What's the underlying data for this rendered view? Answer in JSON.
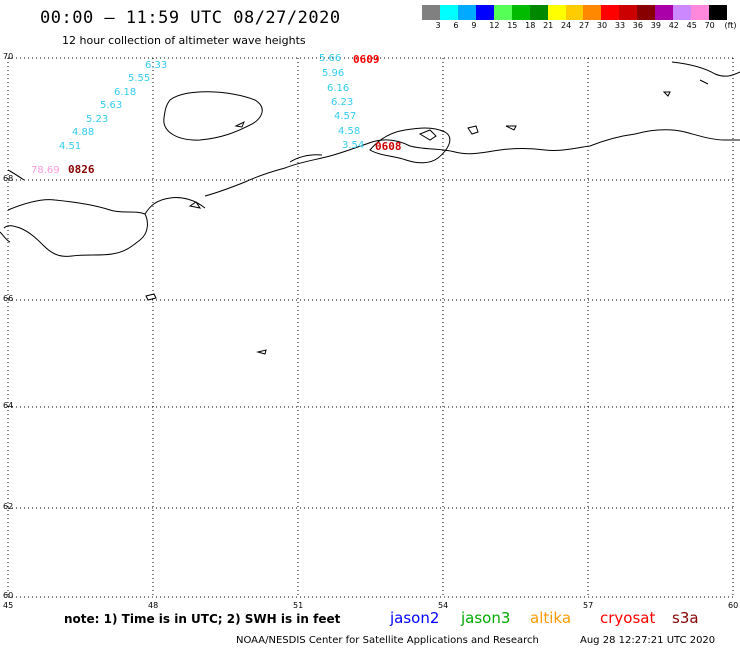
{
  "header": {
    "title": "00:00 – 11:59 UTC 08/27/2020",
    "subtitle": "12 hour collection of altimeter wave heights"
  },
  "legend": {
    "colors": [
      "#808080",
      "#00ffff",
      "#00aaff",
      "#0000ff",
      "#55ff55",
      "#00bb00",
      "#008800",
      "#ffff00",
      "#ffcc00",
      "#ff8800",
      "#ff0000",
      "#cc0000",
      "#880000",
      "#aa00aa",
      "#cc88ff",
      "#ff88dd",
      "#000000"
    ],
    "labels": [
      "3",
      "6",
      "9",
      "12",
      "15",
      "18",
      "21",
      "24",
      "27",
      "30",
      "33",
      "36",
      "39",
      "42",
      "45",
      "70",
      "(ft)"
    ]
  },
  "map": {
    "lat_labels": [
      "70",
      "68",
      "66",
      "64",
      "62",
      "60"
    ],
    "lon_labels": [
      "45",
      "48",
      "51",
      "54",
      "57",
      "60"
    ]
  },
  "observations": {
    "track_west": [
      {
        "text": "6.33",
        "color": "#33ccee"
      },
      {
        "text": "5.55",
        "color": "#33ccee"
      },
      {
        "text": "6.18",
        "color": "#33ccee"
      },
      {
        "text": "5.63",
        "color": "#33ccee"
      },
      {
        "text": "5.23",
        "color": "#33ccee"
      },
      {
        "text": "4.88",
        "color": "#33ccee"
      },
      {
        "text": "4.51",
        "color": "#33ccee"
      },
      {
        "text": "78.69",
        "color": "#ff99dd"
      }
    ],
    "track_east": [
      {
        "text": "5.66",
        "color": "#33ccee"
      },
      {
        "text": "5.96",
        "color": "#33ccee"
      },
      {
        "text": "6.16",
        "color": "#33ccee"
      },
      {
        "text": "6.23",
        "color": "#33ccee"
      },
      {
        "text": "4.57",
        "color": "#33ccee"
      },
      {
        "text": "4.58",
        "color": "#33ccee"
      },
      {
        "text": "3.54",
        "color": "#33ccee"
      }
    ],
    "time_labels": [
      {
        "text": "0826",
        "color": "#880000"
      },
      {
        "text": "0609",
        "color": "#ff0000"
      },
      {
        "text": "0608",
        "color": "#cc0000"
      }
    ]
  },
  "notes": {
    "note": "note: 1) Time is in UTC; 2) SWH is in feet",
    "satellites": [
      {
        "name": "jason2",
        "color": "#0000ff"
      },
      {
        "name": "jason3",
        "color": "#00aa00"
      },
      {
        "name": "altika",
        "color": "#ff9900"
      },
      {
        "name": "cryosat",
        "color": "#ff0000"
      },
      {
        "name": "s3a",
        "color": "#880000"
      }
    ],
    "credit": "NOAA/NESDIS Center for Satellite Applications and Research",
    "generated": "Aug 28 12:27:21 UTC 2020"
  }
}
